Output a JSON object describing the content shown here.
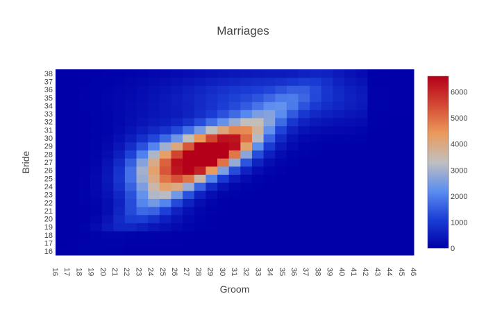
{
  "chart_data": {
    "type": "heatmap",
    "title": "Marriages",
    "xlabel": "Groom",
    "ylabel": "Bride",
    "x": [
      16,
      17,
      18,
      19,
      20,
      21,
      22,
      23,
      24,
      25,
      26,
      27,
      28,
      29,
      30,
      31,
      32,
      33,
      34,
      35,
      36,
      37,
      38,
      39,
      40,
      41,
      42,
      43,
      44,
      45,
      46
    ],
    "y": [
      16,
      17,
      18,
      19,
      20,
      21,
      22,
      23,
      24,
      25,
      26,
      27,
      28,
      29,
      30,
      31,
      32,
      33,
      34,
      35,
      36,
      37,
      38
    ],
    "colorscale": [
      [
        0,
        "#0000a8"
      ],
      [
        0.17,
        "#1c3fd6"
      ],
      [
        0.33,
        "#5a8cf0"
      ],
      [
        0.5,
        "#c0c0c0"
      ],
      [
        0.67,
        "#eb9a5a"
      ],
      [
        0.83,
        "#d44a34"
      ],
      [
        1,
        "#b40018"
      ]
    ],
    "zlim": [
      0,
      6600
    ],
    "colorbar_ticks": [
      0,
      1000,
      2000,
      3000,
      4000,
      5000,
      6000
    ],
    "model": {
      "peak": 6600,
      "note_x": "groom age 16-46",
      "note_y": "bride age 16-38"
    }
  }
}
